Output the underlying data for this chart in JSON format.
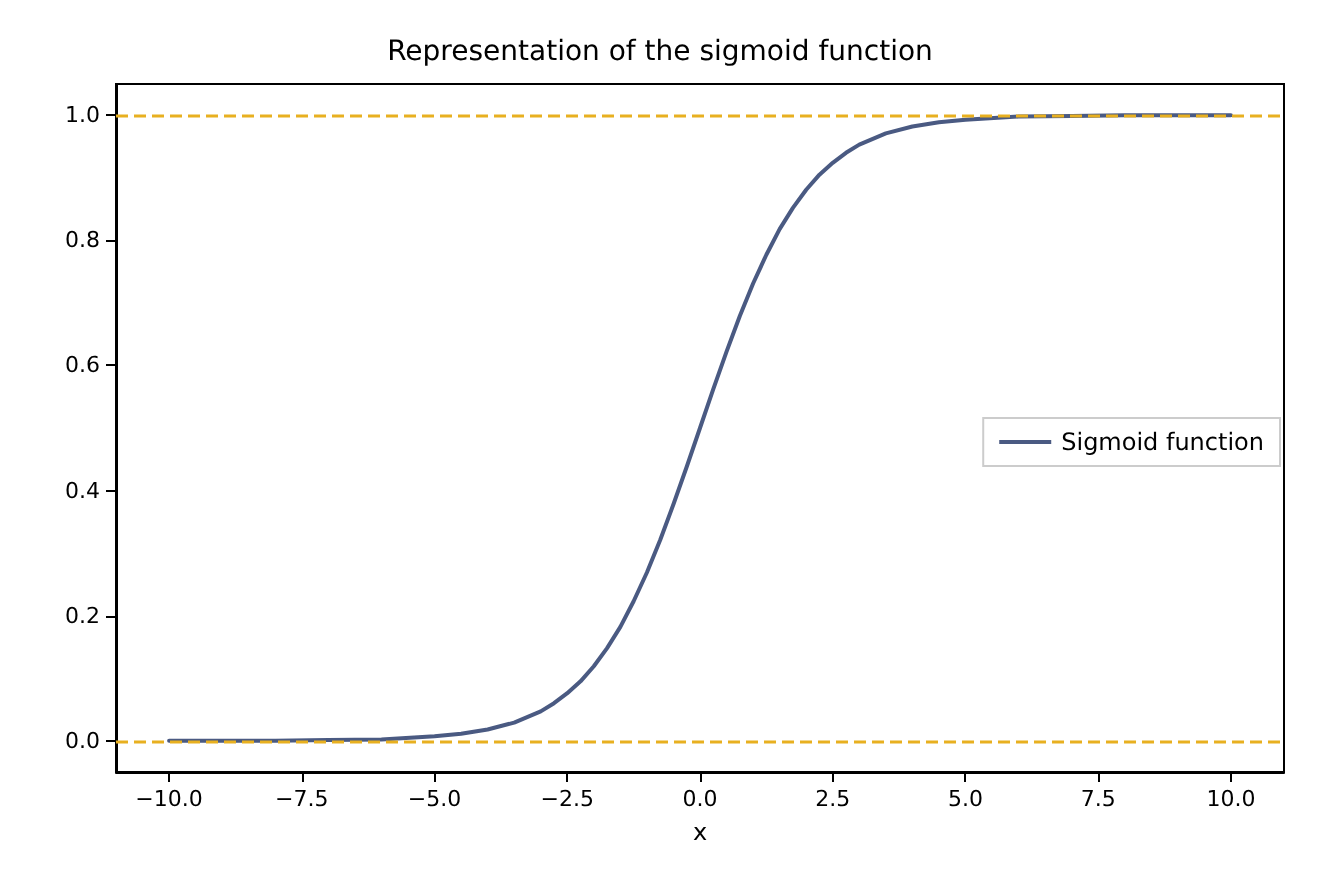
{
  "chart_data": {
    "type": "line",
    "title": "Representation of the sigmoid function",
    "xlabel": "x",
    "x": [
      -10,
      -9,
      -8,
      -7,
      -6,
      -5,
      -4.5,
      -4,
      -3.5,
      -3,
      -2.75,
      -2.5,
      -2.25,
      -2,
      -1.75,
      -1.5,
      -1.25,
      -1,
      -0.75,
      -0.5,
      -0.25,
      0,
      0.25,
      0.5,
      0.75,
      1,
      1.25,
      1.5,
      1.75,
      2,
      2.25,
      2.5,
      2.75,
      3,
      3.5,
      4,
      4.5,
      5,
      6,
      7,
      8,
      9,
      10
    ],
    "series": [
      {
        "name": "Sigmoid function",
        "color": "#4a5a82",
        "values": [
          0,
          0,
          0,
          0.001,
          0.002,
          0.007,
          0.011,
          0.018,
          0.029,
          0.047,
          0.06,
          0.076,
          0.095,
          0.119,
          0.148,
          0.182,
          0.223,
          0.269,
          0.321,
          0.378,
          0.438,
          0.5,
          0.562,
          0.622,
          0.679,
          0.731,
          0.777,
          0.818,
          0.852,
          0.881,
          0.905,
          0.924,
          0.94,
          0.953,
          0.971,
          0.982,
          0.989,
          0.993,
          0.998,
          0.999,
          1,
          1,
          1
        ]
      }
    ],
    "xlim": [
      -11,
      11
    ],
    "xticks": [
      {
        "value": -10,
        "label": "−10.0"
      },
      {
        "value": -7.5,
        "label": "−7.5"
      },
      {
        "value": -5,
        "label": "−5.0"
      },
      {
        "value": -2.5,
        "label": "−2.5"
      },
      {
        "value": 0,
        "label": "0.0"
      },
      {
        "value": 2.5,
        "label": "2.5"
      },
      {
        "value": 5,
        "label": "5.0"
      },
      {
        "value": 7.5,
        "label": "7.5"
      },
      {
        "value": 10,
        "label": "10.0"
      }
    ],
    "ylim": [
      -0.05,
      1.05
    ],
    "yticks": [
      {
        "value": 0,
        "label": "0.0"
      },
      {
        "value": 0.2,
        "label": "0.2"
      },
      {
        "value": 0.4,
        "label": "0.4"
      },
      {
        "value": 0.6,
        "label": "0.6"
      },
      {
        "value": 0.8,
        "label": "0.8"
      },
      {
        "value": 1,
        "label": "1.0"
      }
    ],
    "ref_lines": [
      {
        "axis": "y",
        "value": 0,
        "color": "#e8b020",
        "line_style": "dashed"
      },
      {
        "axis": "y",
        "value": 1,
        "color": "#e8b020",
        "line_style": "dashed"
      }
    ],
    "legend": "right",
    "grid": false,
    "marker": "none",
    "line_style": "solid"
  }
}
